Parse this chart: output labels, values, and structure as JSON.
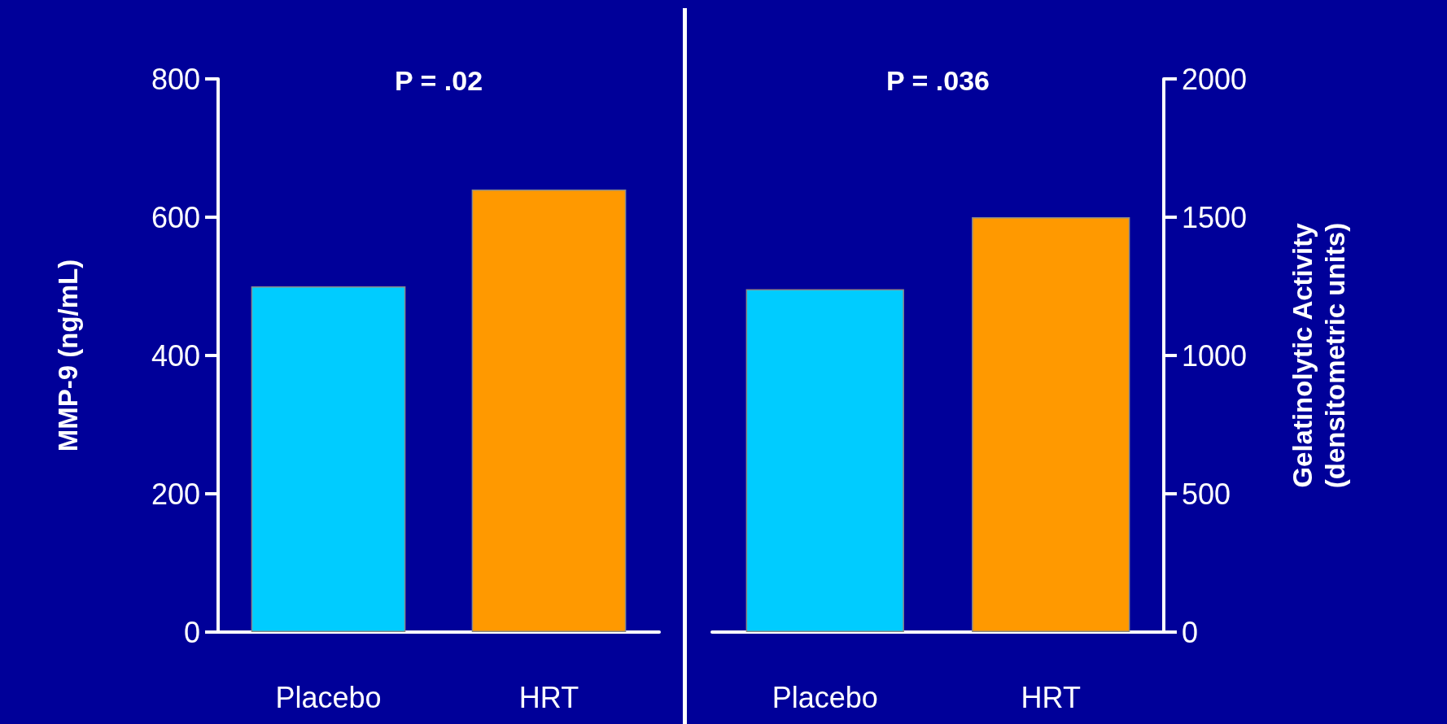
{
  "chart_data": [
    {
      "type": "bar",
      "ylabel": "MMP-9 (ng/mL)",
      "categories": [
        "Placebo",
        "HRT"
      ],
      "values": [
        500,
        640
      ],
      "colors": [
        "#00ccff",
        "#ff9900"
      ],
      "ylim": [
        0,
        800
      ],
      "yticks": [
        0,
        200,
        400,
        600,
        800
      ],
      "annotations": [
        "P = .02"
      ]
    },
    {
      "type": "bar",
      "y2label": "Gelatinolytic Activity\n(densitometric units)",
      "categories": [
        "Placebo",
        "HRT"
      ],
      "series": [
        {
          "values": [
            1240,
            1500
          ],
          "colors": [
            "#00ccff",
            "#ff9900"
          ],
          "axis": "y2"
        }
      ],
      "y2lim": [
        0,
        2000
      ],
      "y2ticks": [
        0,
        500,
        1000,
        1500,
        2000
      ],
      "annotations": [
        "P = .036"
      ]
    }
  ]
}
